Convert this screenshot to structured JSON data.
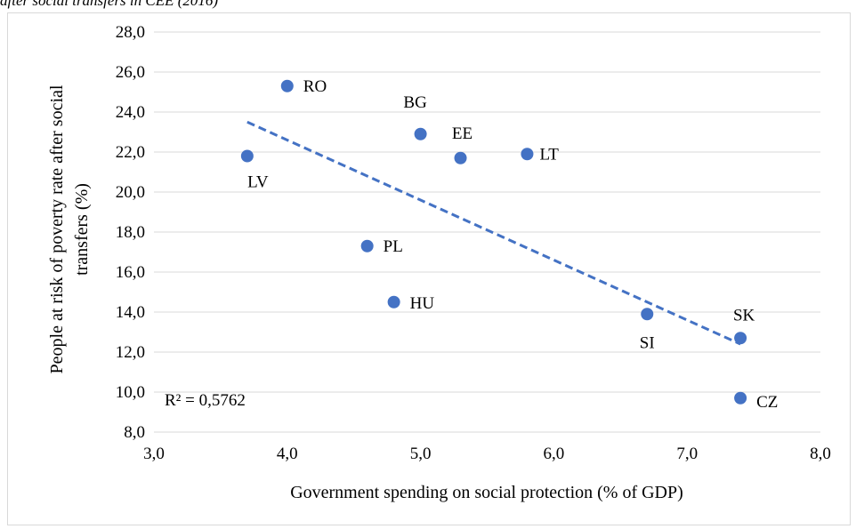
{
  "header": {
    "caption": "after social transfers in CEE (2016)"
  },
  "chart_data": {
    "type": "scatter",
    "title": "",
    "xlabel": "Government spending on social protection (% of GDP)",
    "ylabel_line1": "People at risk of poverty rate after social",
    "ylabel_line2": "transfers (%)",
    "xlim": [
      3.0,
      8.0
    ],
    "ylim": [
      8.0,
      28.0
    ],
    "x_ticks": [
      "3,0",
      "4,0",
      "5,0",
      "6,0",
      "7,0",
      "8,0"
    ],
    "y_ticks": [
      "8,0",
      "10,0",
      "12,0",
      "14,0",
      "16,0",
      "18,0",
      "20,0",
      "22,0",
      "24,0",
      "26,0",
      "28,0"
    ],
    "grid": "horizontal",
    "marker_color": "#4472c4",
    "trendline_color": "#4472c4",
    "points": [
      {
        "label": "RO",
        "x": 4.0,
        "y": 25.3
      },
      {
        "label": "BG",
        "x": 5.0,
        "y": 22.9
      },
      {
        "label": "EE",
        "x": 5.3,
        "y": 21.7
      },
      {
        "label": "LT",
        "x": 5.8,
        "y": 21.9
      },
      {
        "label": "LV",
        "x": 3.7,
        "y": 21.8
      },
      {
        "label": "PL",
        "x": 4.6,
        "y": 17.3
      },
      {
        "label": "HU",
        "x": 4.8,
        "y": 14.5
      },
      {
        "label": "SI",
        "x": 6.7,
        "y": 13.9
      },
      {
        "label": "SK",
        "x": 7.4,
        "y": 12.7
      },
      {
        "label": "CZ",
        "x": 7.4,
        "y": 9.7
      }
    ],
    "trendline": {
      "x": [
        3.7,
        7.4
      ],
      "y": [
        23.5,
        12.4
      ]
    },
    "r_squared": "R² = 0,5762"
  }
}
